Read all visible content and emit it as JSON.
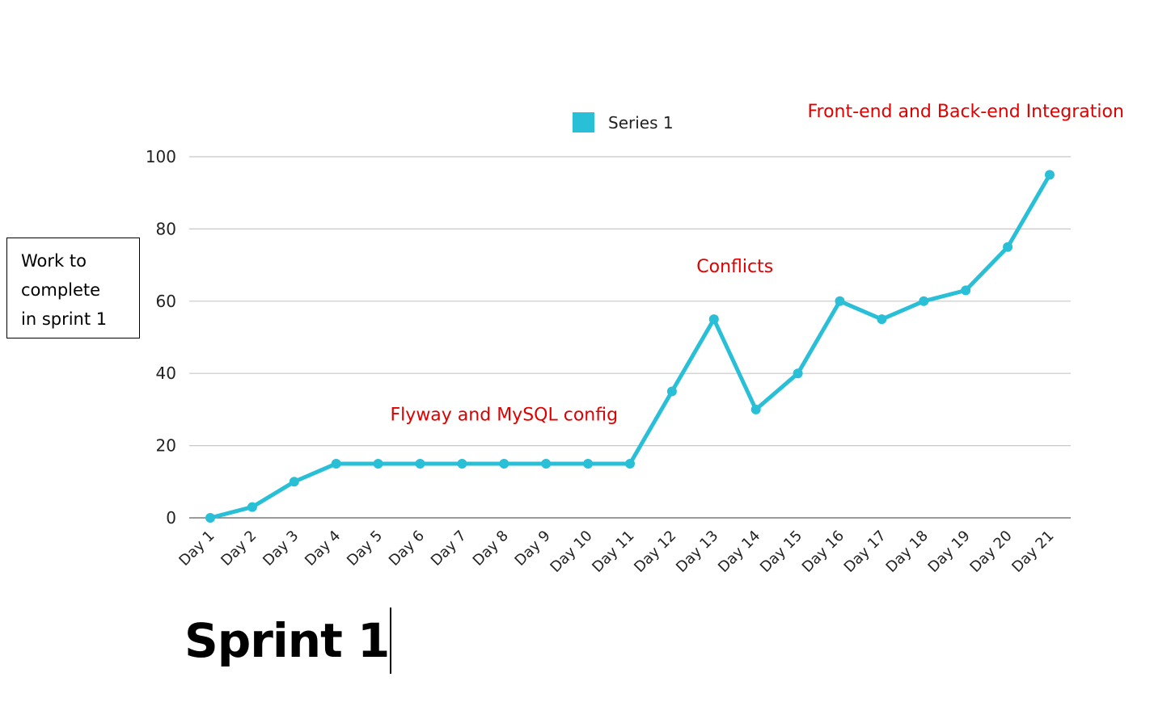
{
  "chart_data": {
    "type": "line",
    "title": "",
    "xlabel": "",
    "ylabel": "Work to complete in sprint 1",
    "ylabel_lines": [
      "Work to",
      "complete",
      "in sprint 1"
    ],
    "categories": [
      "Day 1",
      "Day 2",
      "Day 3",
      "Day 4",
      "Day 5",
      "Day 6",
      "Day 7",
      "Day 8",
      "Day 9",
      "Day 10",
      "Day 11",
      "Day 12",
      "Day 13",
      "Day 14",
      "Day 15",
      "Day 16",
      "Day 17",
      "Day 18",
      "Day 19",
      "Day 20",
      "Day 21"
    ],
    "series": [
      {
        "name": "Series 1",
        "values": [
          0,
          3,
          10,
          15,
          15,
          15,
          15,
          15,
          15,
          15,
          15,
          35,
          55,
          30,
          40,
          60,
          55,
          60,
          63,
          75,
          95
        ]
      }
    ],
    "ylim": [
      0,
      100
    ],
    "yticks": [
      0,
      20,
      40,
      60,
      80,
      100
    ],
    "grid": true,
    "legend": "top-center",
    "annotations": [
      {
        "text": "Flyway and MySQL config",
        "x": "Day 8",
        "y": 27
      },
      {
        "text": "Conflicts",
        "x": "Day 13.5",
        "y": 68
      },
      {
        "text": "Front-end and Back-end Integration",
        "x": "Day 19",
        "y": 111
      }
    ]
  },
  "colors": {
    "series": "#29bfd6",
    "annotation": "#e00000",
    "grid": "#c8c8c8",
    "axis": "#7a7a7a",
    "text": "#222222"
  },
  "caption": {
    "title": "Sprint 1"
  }
}
